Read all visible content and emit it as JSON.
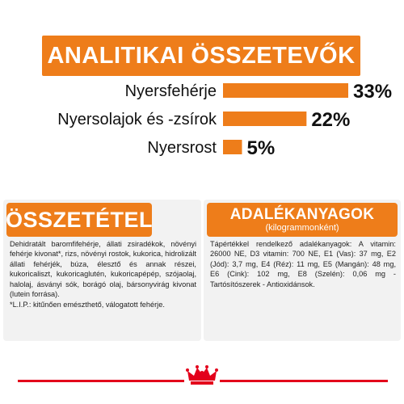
{
  "title": "ANALITIKAI ÖSSZETEVŐK",
  "colors": {
    "accent": "#ee7d1a",
    "panel_bg": "#f2f2f2",
    "brand_red": "#e3001b"
  },
  "chart_data": {
    "type": "bar",
    "orientation": "horizontal",
    "categories": [
      "Nyersfehérje",
      "Nyersolajok és -zsírok",
      "Nyersrost"
    ],
    "values": [
      33,
      22,
      5
    ],
    "value_labels": [
      "33%",
      "22%",
      "5%"
    ],
    "unit": "%",
    "xlim": [
      0,
      33
    ],
    "grid": false,
    "legend": "none"
  },
  "composition": {
    "heading": "ÖSSZETÉTEL",
    "text": "Dehidratált baromfifehérje, állati zsiradékok, növényi fehérje kivonat*, rizs, növényi rostok, kukorica, hidrolizált állati fehérjék, búza, élesztő és annak részei, kukoricaliszt, kukoricaglutén, kukoricapépép, szójaolaj, halolaj, ásványi sók, borágó olaj, bársonyvirág kivonat (lutein forrása).",
    "footnote": "*L.I.P.: kitűnően emészthető, válogatott fehérje."
  },
  "additives": {
    "heading": "ADALÉKANYAGOK",
    "subheading": "(kilogrammonként)",
    "text": "Tápértékkel rendelkező adalékanyagok: A vitamin: 26000 NE, D3 vitamin: 700 NE, E1 (Vas): 37 mg, E2 (Jód): 3,7 mg, E4 (Réz): 11 mg, E5 (Mangán): 48 mg, E6 (Cink): 102 mg, E8 (Szelén): 0,06 mg - Tartósítószerek - Antioxidánsok."
  },
  "brand": {
    "logo": "crown-icon"
  }
}
